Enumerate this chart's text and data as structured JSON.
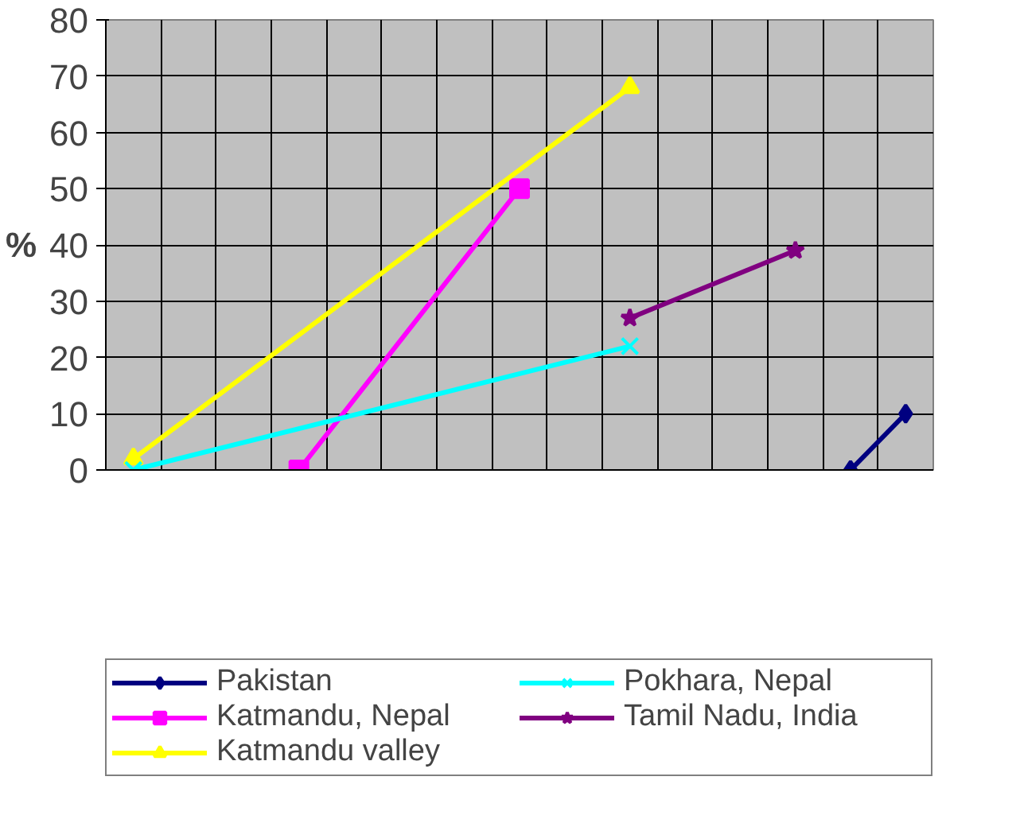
{
  "chart_data": {
    "type": "line",
    "ylabel": "%",
    "categories": [
      null,
      null,
      null,
      null,
      null,
      null,
      null,
      null,
      null,
      null,
      null,
      null,
      null,
      null,
      null
    ],
    "ylim": [
      0,
      80
    ],
    "yticks": [
      0,
      10,
      20,
      30,
      40,
      50,
      60,
      70,
      80
    ],
    "grid": true,
    "legend": "bottom",
    "tick_labels": "y",
    "series": [
      {
        "name": "Pakistan",
        "color": "#000080",
        "marker": "diamond",
        "values": [
          null,
          null,
          null,
          null,
          null,
          null,
          null,
          null,
          null,
          null,
          null,
          null,
          null,
          0,
          10
        ]
      },
      {
        "name": "Katmandu, Nepal",
        "color": "#ff00ff",
        "marker": "square",
        "values": [
          null,
          null,
          null,
          0,
          null,
          null,
          null,
          50,
          null,
          null,
          null,
          null,
          null,
          null,
          null
        ]
      },
      {
        "name": "Katmandu valley",
        "color": "#ffff00",
        "marker": "triangle",
        "values": [
          2,
          null,
          null,
          null,
          null,
          null,
          null,
          null,
          null,
          68,
          null,
          null,
          null,
          null,
          null
        ]
      },
      {
        "name": "Pokhara, Nepal",
        "color": "#00ffff",
        "marker": "cross",
        "values": [
          0,
          null,
          null,
          null,
          null,
          null,
          null,
          null,
          null,
          22,
          null,
          null,
          null,
          null,
          null
        ]
      },
      {
        "name": "Tamil Nadu, India",
        "color": "#800080",
        "marker": "star",
        "values": [
          null,
          null,
          null,
          null,
          null,
          null,
          null,
          null,
          null,
          27,
          null,
          null,
          39,
          null,
          null
        ]
      }
    ]
  }
}
